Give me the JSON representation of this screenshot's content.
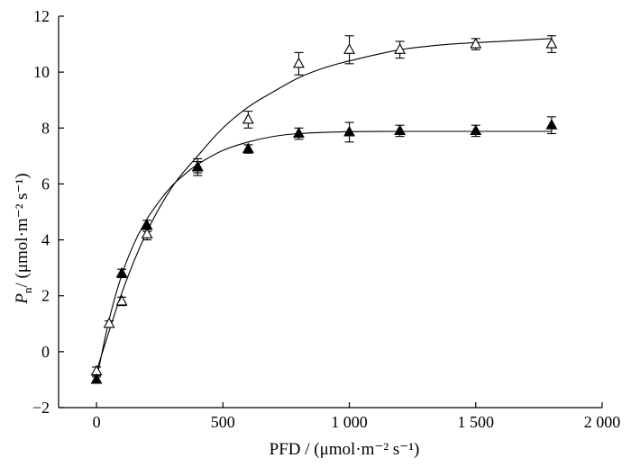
{
  "chart_data": {
    "type": "scatter",
    "title": "",
    "xlabel": "PFD / (μmol·m⁻² s⁻¹)",
    "ylabel": {
      "symbol": "P",
      "subscript": "n",
      "unit": "/ (μmol·m⁻² s⁻¹)"
    },
    "xlim": [
      -150,
      2000
    ],
    "ylim": [
      -2,
      12
    ],
    "x_ticks": [
      0,
      500,
      1000,
      1500,
      2000
    ],
    "x_tick_labels": [
      "0",
      "500",
      "1 000",
      "1 500",
      "2 000"
    ],
    "y_ticks": [
      -2,
      0,
      2,
      4,
      6,
      8,
      10,
      12
    ],
    "y_tick_labels": [
      "−2",
      "0",
      "2",
      "4",
      "6",
      "8",
      "10",
      "12"
    ],
    "grid": false,
    "legend": "none",
    "series": [
      {
        "marker": "open-triangle",
        "points": [
          {
            "x": 0,
            "y": -0.7,
            "err": 0.15
          },
          {
            "x": 50,
            "y": 1.0,
            "err": 0.1
          },
          {
            "x": 100,
            "y": 1.8,
            "err": 0.15
          },
          {
            "x": 200,
            "y": 4.2,
            "err": 0.2
          },
          {
            "x": 400,
            "y": 6.6,
            "err": 0.3
          },
          {
            "x": 600,
            "y": 8.3,
            "err": 0.3
          },
          {
            "x": 800,
            "y": 10.3,
            "err": 0.4
          },
          {
            "x": 1000,
            "y": 10.8,
            "err": 0.5
          },
          {
            "x": 1200,
            "y": 10.8,
            "err": 0.3
          },
          {
            "x": 1500,
            "y": 11.0,
            "err": 0.2
          },
          {
            "x": 1800,
            "y": 11.0,
            "err": 0.3
          }
        ],
        "fit": {
          "x": [
            0,
            100,
            200,
            300,
            400,
            500,
            600,
            700,
            800,
            900,
            1000,
            1200,
            1400,
            1600,
            1800
          ],
          "y": [
            -0.7,
            2.1,
            4.3,
            5.9,
            7.0,
            8.0,
            8.75,
            9.3,
            9.8,
            10.15,
            10.4,
            10.8,
            11.0,
            11.1,
            11.2
          ]
        }
      },
      {
        "marker": "filled-triangle",
        "points": [
          {
            "x": 0,
            "y": -1.0,
            "err": 0.1
          },
          {
            "x": 100,
            "y": 2.8,
            "err": 0.15
          },
          {
            "x": 200,
            "y": 4.5,
            "err": 0.2
          },
          {
            "x": 400,
            "y": 6.6,
            "err": 0.2
          },
          {
            "x": 600,
            "y": 7.25,
            "err": 0.15
          },
          {
            "x": 800,
            "y": 7.8,
            "err": 0.2
          },
          {
            "x": 1000,
            "y": 7.85,
            "err": 0.35
          },
          {
            "x": 1200,
            "y": 7.9,
            "err": 0.2
          },
          {
            "x": 1500,
            "y": 7.9,
            "err": 0.2
          },
          {
            "x": 1800,
            "y": 8.1,
            "err": 0.3
          }
        ],
        "fit": {
          "x": [
            0,
            50,
            100,
            150,
            200,
            250,
            300,
            350,
            400,
            500,
            600,
            700,
            800,
            1000,
            1200,
            1500,
            1800
          ],
          "y": [
            -1.0,
            1.15,
            2.75,
            3.9,
            4.75,
            5.4,
            5.95,
            6.35,
            6.7,
            7.2,
            7.5,
            7.7,
            7.8,
            7.87,
            7.88,
            7.88,
            7.88
          ]
        }
      }
    ]
  }
}
